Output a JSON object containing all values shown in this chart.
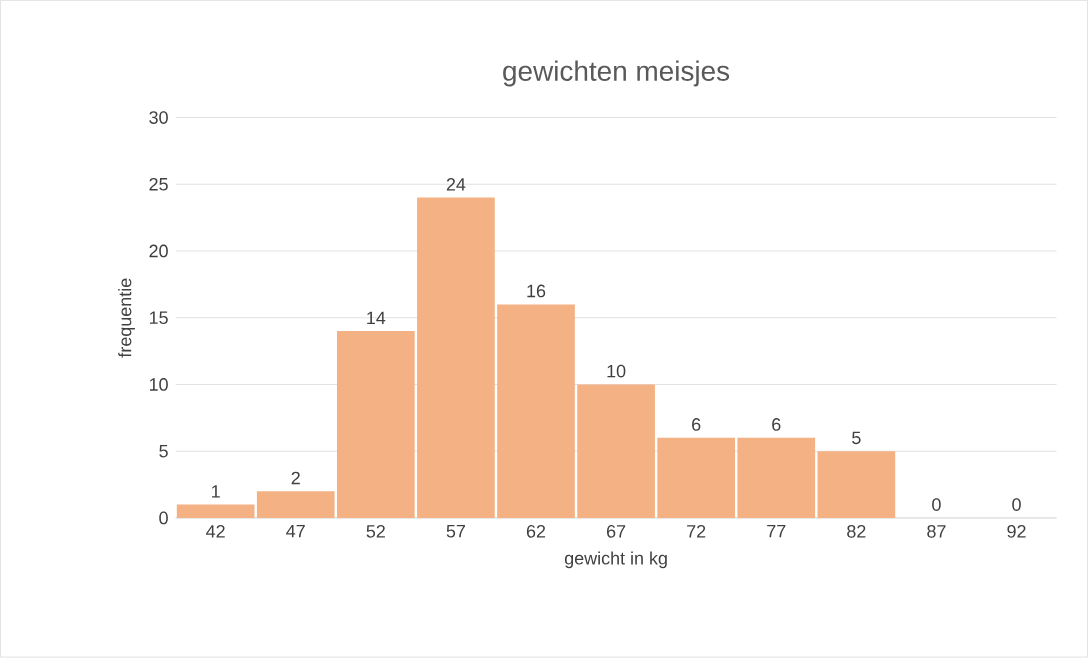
{
  "chart_data": {
    "type": "bar",
    "title": "gewichten meisjes",
    "xlabel": "gewicht in kg",
    "ylabel": "frequentie",
    "categories": [
      "42",
      "47",
      "52",
      "57",
      "62",
      "67",
      "72",
      "77",
      "82",
      "87",
      "92"
    ],
    "values": [
      1,
      2,
      14,
      24,
      16,
      10,
      6,
      6,
      5,
      0,
      0
    ],
    "color": "#f4b183",
    "ylim": [
      0,
      30
    ],
    "yticks": [
      0,
      5,
      10,
      15,
      20,
      25,
      30
    ],
    "grid": "y",
    "data_labels": true
  }
}
